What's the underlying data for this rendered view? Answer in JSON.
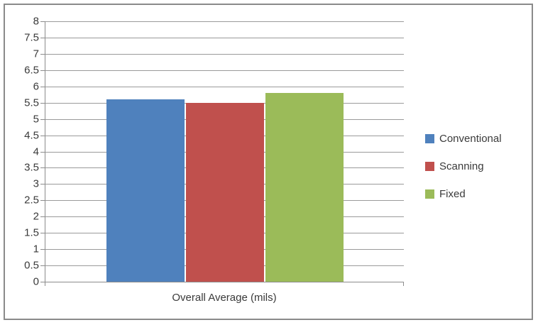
{
  "chart_data": {
    "type": "bar",
    "title": "",
    "categories": [
      "Overall Average (mils)"
    ],
    "series": [
      {
        "name": "Conventional",
        "values": [
          5.6
        ],
        "color": "#4F81BD"
      },
      {
        "name": "Scanning",
        "values": [
          5.5
        ],
        "color": "#C0504D"
      },
      {
        "name": "Fixed",
        "values": [
          5.8
        ],
        "color": "#9BBB59"
      }
    ],
    "xlabel": "Overall Average (mils)",
    "ylabel": "",
    "ylim": [
      0,
      8
    ],
    "ytick_step": 0.5,
    "grid": true,
    "legend_position": "right"
  },
  "style": {
    "frame_border_color": "#8a8a8a",
    "axis_color": "#8c8c8c",
    "gridline_color": "#9a9a9a",
    "text_color": "#3a3a3a",
    "background_color": "#ffffff"
  }
}
